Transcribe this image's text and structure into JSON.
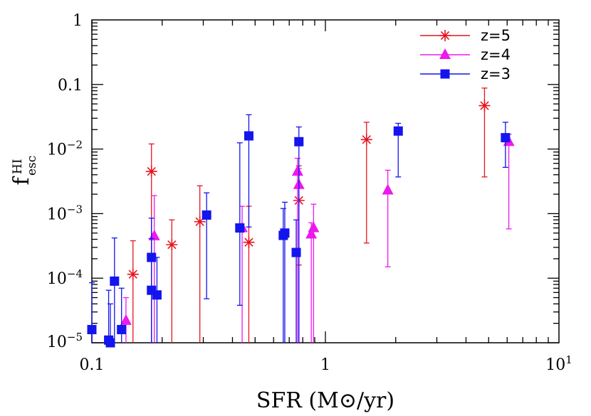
{
  "chart_data": {
    "type": "scatter",
    "title": "",
    "xlabel": "SFR (M⊙/yr)",
    "ylabel": "f esc HI",
    "ylabel_main": "f",
    "ylabel_sup": "HI",
    "ylabel_sub": "esc",
    "xscale": "log",
    "yscale": "log",
    "xlim": [
      0.1,
      10
    ],
    "ylim": [
      1e-05,
      1
    ],
    "grid": false,
    "legend_position": "top-right",
    "x_tick_labels": [
      {
        "value": 0.1,
        "label": "0.1"
      },
      {
        "value": 1,
        "label": "1"
      },
      {
        "value": 10,
        "base": "10",
        "exp": "1"
      }
    ],
    "y_tick_labels": [
      {
        "value": 1,
        "label": "1"
      },
      {
        "value": 0.1,
        "label": "0.1"
      },
      {
        "value": 0.01,
        "base": "10",
        "exp": "−2"
      },
      {
        "value": 0.001,
        "base": "10",
        "exp": "−3"
      },
      {
        "value": 0.0001,
        "base": "10",
        "exp": "−4"
      },
      {
        "value": 1e-05,
        "base": "10",
        "exp": "−5"
      }
    ],
    "series": [
      {
        "name": "z=5",
        "color": "#e8141e",
        "marker": "asterisk",
        "points": [
          {
            "x": 0.15,
            "y": 0.000115,
            "ylo": 1e-05,
            "yhi": 0.00038
          },
          {
            "x": 0.18,
            "y": 0.0045,
            "ylo": 1e-05,
            "yhi": 0.012
          },
          {
            "x": 0.22,
            "y": 0.00033,
            "ylo": 1e-05,
            "yhi": 0.0008
          },
          {
            "x": 0.29,
            "y": 0.00075,
            "ylo": 1e-05,
            "yhi": 0.0027
          },
          {
            "x": 0.47,
            "y": 0.00036,
            "ylo": 1e-05,
            "yhi": 0.0013
          },
          {
            "x": 0.77,
            "y": 0.0016,
            "ylo": 0.00016,
            "yhi": 0.0055
          },
          {
            "x": 1.5,
            "y": 0.014,
            "ylo": 0.00035,
            "yhi": 0.026
          },
          {
            "x": 4.8,
            "y": 0.047,
            "ylo": 0.0037,
            "yhi": 0.088
          }
        ]
      },
      {
        "name": "z=4",
        "color": "#ee18ee",
        "marker": "triangle",
        "points": [
          {
            "x": 0.14,
            "y": 2.2e-05,
            "ylo": 1e-05,
            "yhi": 5e-05
          },
          {
            "x": 0.185,
            "y": 0.00045,
            "ylo": 1e-05,
            "yhi": 0.0019
          },
          {
            "x": 0.44,
            "y": 0.0006,
            "ylo": 1e-05,
            "yhi": 0.0013
          },
          {
            "x": 0.76,
            "y": 0.0045,
            "ylo": 1e-05,
            "yhi": 0.0072
          },
          {
            "x": 0.77,
            "y": 0.0028,
            "ylo": 1e-05,
            "yhi": 0.005
          },
          {
            "x": 0.87,
            "y": 0.00048,
            "ylo": 1e-05,
            "yhi": 0.00072
          },
          {
            "x": 0.89,
            "y": 0.0006,
            "ylo": 1e-05,
            "yhi": 0.0014
          },
          {
            "x": 1.85,
            "y": 0.0023,
            "ylo": 0.00015,
            "yhi": 0.0047
          },
          {
            "x": 6.1,
            "y": 0.013,
            "ylo": 0.00058,
            "yhi": 0.017
          }
        ]
      },
      {
        "name": "z=3",
        "color": "#1414ee",
        "marker": "square",
        "points": [
          {
            "x": 0.1,
            "y": 1.6e-05,
            "ylo": 1e-05,
            "yhi": 8.5e-05
          },
          {
            "x": 0.118,
            "y": 1.1e-05,
            "ylo": 1e-05,
            "yhi": 6.5e-05
          },
          {
            "x": 0.12,
            "y": 1e-05,
            "ylo": 1e-05,
            "yhi": 4e-05
          },
          {
            "x": 0.125,
            "y": 9e-05,
            "ylo": 1e-05,
            "yhi": 0.00042
          },
          {
            "x": 0.134,
            "y": 1.6e-05,
            "ylo": 1e-05,
            "yhi": 7e-05
          },
          {
            "x": 0.18,
            "y": 0.00021,
            "ylo": 1e-05,
            "yhi": 0.00085
          },
          {
            "x": 0.18,
            "y": 6.5e-05,
            "ylo": 1e-05,
            "yhi": 0.00041
          },
          {
            "x": 0.19,
            "y": 5.5e-05,
            "ylo": 1e-05,
            "yhi": 0.00021
          },
          {
            "x": 0.31,
            "y": 0.00095,
            "ylo": 4.8e-05,
            "yhi": 0.0021
          },
          {
            "x": 0.43,
            "y": 0.0006,
            "ylo": 3.8e-05,
            "yhi": 0.0125
          },
          {
            "x": 0.47,
            "y": 0.016,
            "ylo": 0.00062,
            "yhi": 0.034
          },
          {
            "x": 0.66,
            "y": 0.00046,
            "ylo": 1e-05,
            "yhi": 0.0012
          },
          {
            "x": 0.67,
            "y": 0.0005,
            "ylo": 1e-05,
            "yhi": 0.0015
          },
          {
            "x": 0.75,
            "y": 0.00025,
            "ylo": 1e-05,
            "yhi": 0.0008
          },
          {
            "x": 0.77,
            "y": 0.013,
            "ylo": 1e-05,
            "yhi": 0.022
          },
          {
            "x": 2.05,
            "y": 0.019,
            "ylo": 0.0037,
            "yhi": 0.025
          },
          {
            "x": 5.9,
            "y": 0.015,
            "ylo": 0.0052,
            "yhi": 0.026
          }
        ]
      }
    ]
  }
}
